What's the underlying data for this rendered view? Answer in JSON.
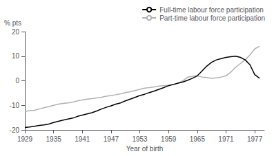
{
  "chart_data": {
    "type": "line",
    "title": "",
    "xlabel": "Year of birth",
    "ylabel": "% pts",
    "xlim": [
      1929,
      1979
    ],
    "ylim": [
      -20,
      20
    ],
    "xticks": [
      1929,
      1935,
      1941,
      1947,
      1953,
      1959,
      1965,
      1971,
      1977
    ],
    "yticks": [
      -20,
      -10,
      0,
      10,
      20
    ],
    "grid": false,
    "legend": "upper right",
    "x": [
      1929,
      1930,
      1931,
      1932,
      1933,
      1934,
      1935,
      1936,
      1937,
      1938,
      1939,
      1940,
      1941,
      1942,
      1943,
      1944,
      1945,
      1946,
      1947,
      1948,
      1949,
      1950,
      1951,
      1952,
      1953,
      1954,
      1955,
      1956,
      1957,
      1958,
      1959,
      1960,
      1961,
      1962,
      1963,
      1964,
      1965,
      1966,
      1967,
      1968,
      1969,
      1970,
      1971,
      1972,
      1973,
      1974,
      1975,
      1976,
      1977,
      1978
    ],
    "series": [
      {
        "name": "Full-time labour force participation",
        "color": "#000000",
        "values": [
          -19.0,
          -18.8,
          -18.5,
          -18.2,
          -18.0,
          -17.6,
          -17.0,
          -16.5,
          -16.0,
          -15.6,
          -15.2,
          -14.5,
          -14.0,
          -13.5,
          -13.0,
          -12.3,
          -11.5,
          -10.8,
          -10.2,
          -9.5,
          -9.0,
          -8.2,
          -7.5,
          -6.8,
          -6.0,
          -5.5,
          -4.8,
          -4.2,
          -3.5,
          -2.8,
          -2.0,
          -1.5,
          -1.0,
          -0.5,
          0.2,
          1.0,
          2.0,
          4.0,
          6.0,
          7.5,
          8.5,
          9.0,
          9.5,
          9.8,
          10.0,
          9.5,
          8.5,
          6.5,
          2.5,
          1.0
        ]
      },
      {
        "name": "Part-time labour force participation",
        "color": "#b0b0b0",
        "values": [
          -12.5,
          -12.2,
          -12.0,
          -11.5,
          -11.0,
          -10.5,
          -10.0,
          -9.5,
          -9.2,
          -9.0,
          -8.7,
          -8.2,
          -7.8,
          -7.5,
          -7.3,
          -7.0,
          -6.7,
          -6.3,
          -6.0,
          -5.7,
          -5.3,
          -4.8,
          -4.5,
          -4.0,
          -3.5,
          -3.0,
          -2.8,
          -2.5,
          -2.2,
          -2.0,
          -1.8,
          -1.5,
          -1.0,
          0.0,
          1.5,
          1.8,
          2.0,
          1.5,
          1.3,
          1.0,
          1.2,
          1.5,
          2.0,
          3.5,
          5.5,
          7.0,
          8.5,
          10.5,
          13.0,
          14.0
        ]
      }
    ]
  }
}
